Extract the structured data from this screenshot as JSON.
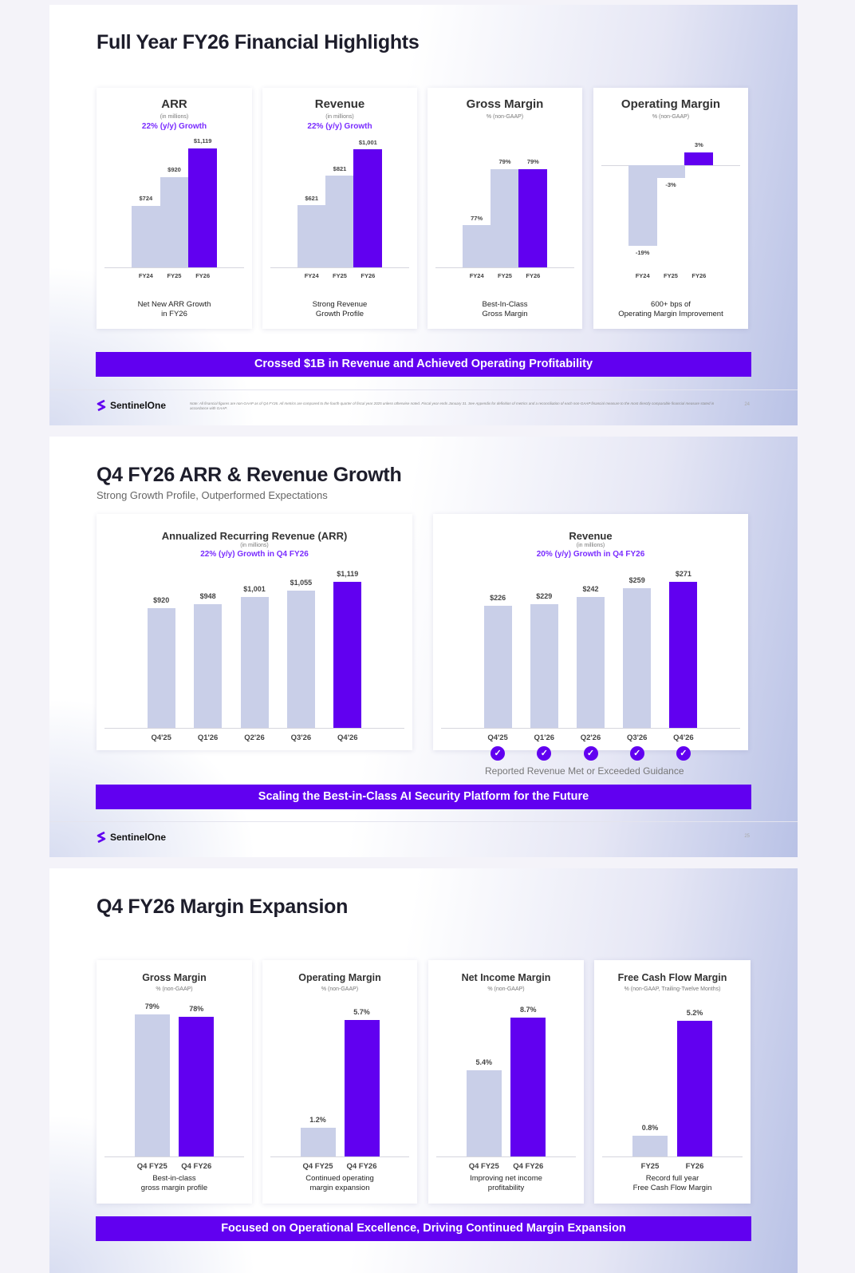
{
  "colors": {
    "accent": "#6100f0",
    "bar_prior": "#c9cfe8",
    "growth_text": "#7a2cff"
  },
  "brand": "SentinelOne",
  "slides": [
    {
      "title": "Full Year FY26 Financial Highlights",
      "banner": "Crossed $1B in Revenue and Achieved Operating Profitability",
      "footnote": "Note: All financial figures are non-GAAP as of Q4 FY26. All metrics are compared to the fourth quarter of fiscal year 2025 unless otherwise noted. Fiscal year ends January 31. See Appendix for definition of metrics and a reconciliation of each non-GAAP financial measure to the most directly comparable financial measure stated in accordance with GAAP.",
      "page": "24"
    },
    {
      "title": "Q4 FY26 ARR & Revenue Growth",
      "subtitle": "Strong Growth Profile, Outperformed Expectations",
      "banner": "Scaling the Best-in-Class AI Security Platform for the Future",
      "guidance_caption": "Reported Revenue Met or Exceeded Guidance",
      "guidance_met": [
        true,
        true,
        true,
        true,
        true
      ],
      "page": "25"
    },
    {
      "title": "Q4 FY26 Margin Expansion",
      "banner": "Focused on Operational Excellence, Driving Continued Margin Expansion"
    }
  ],
  "chart_data": [
    {
      "type": "bar",
      "title": "ARR",
      "subtitle": "(in millions)",
      "growth": "22% (y/y) Growth",
      "categories": [
        "FY24",
        "FY25",
        "FY26"
      ],
      "values": [
        724,
        920,
        1119
      ],
      "labels": [
        "$724",
        "$920",
        "$1,119"
      ],
      "ylim": [
        300,
        1150
      ],
      "note": "Net New ARR Growth\nin FY26"
    },
    {
      "type": "bar",
      "title": "Revenue",
      "subtitle": "(in millions)",
      "growth": "22% (y/y) Growth",
      "categories": [
        "FY24",
        "FY25",
        "FY26"
      ],
      "values": [
        621,
        821,
        1001
      ],
      "labels": [
        "$621",
        "$821",
        "$1,001"
      ],
      "ylim": [
        200,
        1040
      ],
      "note": "Strong Revenue\nGrowth Profile"
    },
    {
      "type": "bar",
      "title": "Gross Margin",
      "subtitle": "% (non-GAAP)",
      "growth": "",
      "categories": [
        "FY24",
        "FY25",
        "FY26"
      ],
      "values": [
        77,
        79,
        79
      ],
      "labels": [
        "77%",
        "79%",
        "79%"
      ],
      "ylim": [
        75.5,
        79.9
      ],
      "note": "Best-In-Class\nGross Margin"
    },
    {
      "type": "bar",
      "title": "Operating Margin",
      "subtitle": "% (non-GAAP)",
      "growth": "",
      "categories": [
        "FY24",
        "FY25",
        "FY26"
      ],
      "values": [
        -19,
        -3,
        3
      ],
      "labels": [
        "-19%",
        "-3%",
        "3%"
      ],
      "ylim": [
        -24,
        5
      ],
      "note": "600+ bps of\nOperating Margin Improvement"
    },
    {
      "type": "bar",
      "title": "Annualized Recurring Revenue (ARR)",
      "subtitle": "(in millions)",
      "growth": "22% (y/y) Growth in Q4 FY26",
      "categories": [
        "Q4'25",
        "Q1'26",
        "Q2'26",
        "Q3'26",
        "Q4'26"
      ],
      "values": [
        920,
        948,
        1001,
        1055,
        1119
      ],
      "labels": [
        "$920",
        "$948",
        "$1,001",
        "$1,055",
        "$1,119"
      ],
      "ylim": [
        0,
        1150
      ],
      "note": ""
    },
    {
      "type": "bar",
      "title": "Revenue",
      "subtitle": "(in millions)",
      "growth": "20% (y/y) Growth in Q4 FY26",
      "categories": [
        "Q4'25",
        "Q1'26",
        "Q2'26",
        "Q3'26",
        "Q4'26"
      ],
      "values": [
        226,
        229,
        242,
        259,
        271
      ],
      "labels": [
        "$226",
        "$229",
        "$242",
        "$259",
        "$271"
      ],
      "ylim": [
        0,
        278
      ],
      "note": ""
    },
    {
      "type": "bar",
      "title": "Gross Margin",
      "subtitle": "% (non-GAAP)",
      "growth": "",
      "categories": [
        "Q4 FY25",
        "Q4 FY26"
      ],
      "values": [
        79,
        78
      ],
      "labels": [
        "79%",
        "78%"
      ],
      "ylim": [
        0,
        80
      ],
      "note": "Best-in-class\ngross margin profile"
    },
    {
      "type": "bar",
      "title": "Operating Margin",
      "subtitle": "% (non-GAAP)",
      "growth": "",
      "categories": [
        "Q4 FY25",
        "Q4 FY26"
      ],
      "values": [
        1.2,
        5.7
      ],
      "labels": [
        "1.2%",
        "5.7%"
      ],
      "ylim": [
        0,
        6
      ],
      "note": "Continued operating\nmargin expansion"
    },
    {
      "type": "bar",
      "title": "Net Income Margin",
      "subtitle": "% (non-GAAP)",
      "growth": "",
      "categories": [
        "Q4 FY25",
        "Q4 FY26"
      ],
      "values": [
        5.4,
        8.7
      ],
      "labels": [
        "5.4%",
        "8.7%"
      ],
      "ylim": [
        0,
        9
      ],
      "note": "Improving net income\nprofitability"
    },
    {
      "type": "bar",
      "title": "Free Cash Flow Margin",
      "subtitle": "% (non-GAAP, Trailing-Twelve Months)",
      "growth": "",
      "categories": [
        "FY25",
        "FY26"
      ],
      "values": [
        0.8,
        5.2
      ],
      "labels": [
        "0.8%",
        "5.2%"
      ],
      "ylim": [
        0,
        5.5
      ],
      "note": "Record full year\nFree Cash Flow Margin"
    }
  ]
}
